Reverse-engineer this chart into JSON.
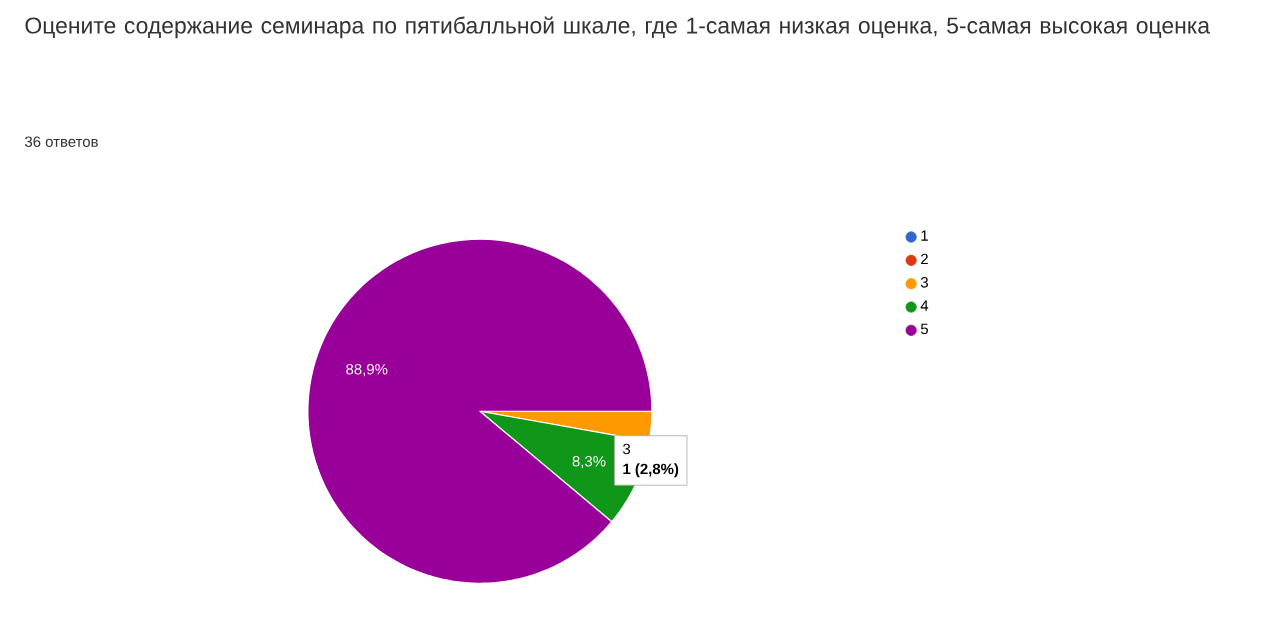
{
  "chart_data": {
    "type": "pie",
    "title": "Оцените содержание семинара по пятибалльной шкале, где 1-самая низкая оценка, 5-самая высокая оценка",
    "subtitle": "36 ответов",
    "categories": [
      "1",
      "2",
      "3",
      "4",
      "5"
    ],
    "values": [
      0,
      0,
      2.8,
      8.3,
      88.9
    ],
    "colors": [
      "#3366cc",
      "#dc3912",
      "#ff9900",
      "#109618",
      "#990099"
    ],
    "value_labels": [
      null,
      null,
      null,
      "8,3%",
      "88,9%"
    ],
    "legend": "right",
    "annotations": [
      "3",
      "1 (2,8%)"
    ]
  }
}
